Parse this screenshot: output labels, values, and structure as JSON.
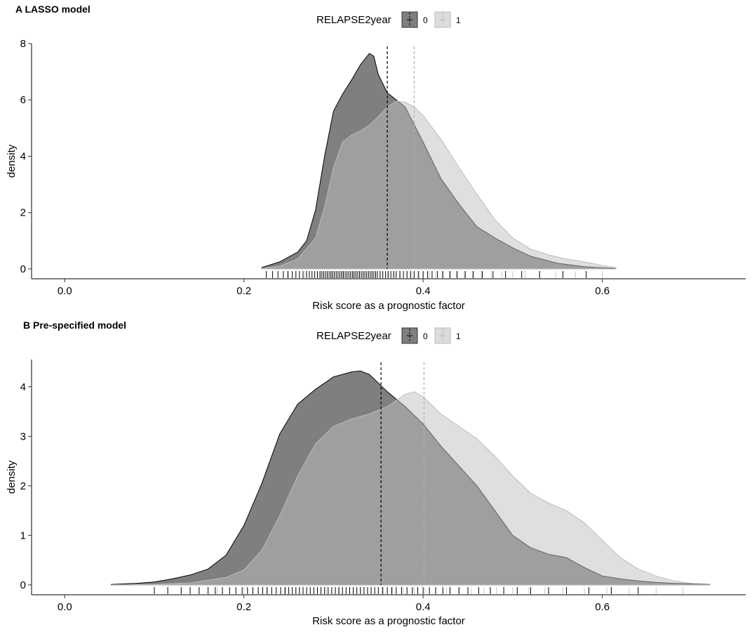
{
  "figure": {
    "panels": [
      {
        "title": "A  LASSO model"
      },
      {
        "title": "B  Pre-specified model"
      }
    ]
  },
  "chart_data": [
    {
      "type": "area",
      "title": "A  LASSO model",
      "xlabel": "Risk score as a prognostic factor",
      "ylabel": "density",
      "xlim": [
        -0.037,
        0.76
      ],
      "ylim": [
        -0.35,
        8.0
      ],
      "xticks": [
        "0.0",
        "0.2",
        "0.4",
        "0.6"
      ],
      "xtick_values": [
        0.0,
        0.2,
        0.4,
        0.6
      ],
      "yticks": [
        "0",
        "2",
        "4",
        "6",
        "8"
      ],
      "ytick_values": [
        0,
        2,
        4,
        6,
        8
      ],
      "legend": {
        "title": "RELAPSE2year",
        "position": "top",
        "entries": [
          "0",
          "1"
        ]
      },
      "grid": false,
      "colors": {
        "0": "#7f7f7f",
        "1": "#dcdcdc",
        "mean0": "#000000",
        "mean1": "#b0b0b0"
      },
      "series": [
        {
          "name": "0",
          "mean": 0.36,
          "x": [
            0.22,
            0.24,
            0.26,
            0.27,
            0.28,
            0.29,
            0.3,
            0.31,
            0.32,
            0.33,
            0.34,
            0.345,
            0.35,
            0.36,
            0.38,
            0.4,
            0.42,
            0.44,
            0.46,
            0.48,
            0.5,
            0.52,
            0.55,
            0.58,
            0.6,
            0.615
          ],
          "y": [
            0.05,
            0.25,
            0.6,
            1.0,
            2.1,
            4.0,
            5.6,
            6.2,
            6.7,
            7.25,
            7.65,
            7.55,
            6.9,
            6.25,
            5.75,
            4.5,
            3.2,
            2.3,
            1.5,
            1.1,
            0.75,
            0.45,
            0.2,
            0.08,
            0.04,
            0.02
          ]
        },
        {
          "name": "1",
          "mean": 0.39,
          "x": [
            0.22,
            0.24,
            0.26,
            0.28,
            0.29,
            0.3,
            0.31,
            0.32,
            0.33,
            0.34,
            0.35,
            0.36,
            0.37,
            0.38,
            0.39,
            0.4,
            0.42,
            0.44,
            0.46,
            0.48,
            0.5,
            0.52,
            0.54,
            0.56,
            0.58,
            0.6,
            0.615
          ],
          "y": [
            0.02,
            0.1,
            0.35,
            1.1,
            2.2,
            3.6,
            4.5,
            4.75,
            4.9,
            5.1,
            5.4,
            5.75,
            5.95,
            5.92,
            5.75,
            5.45,
            4.6,
            3.6,
            2.65,
            1.75,
            1.1,
            0.7,
            0.5,
            0.35,
            0.25,
            0.12,
            0.05
          ]
        }
      ],
      "rug": {
        "0": [
          0.225,
          0.232,
          0.238,
          0.244,
          0.249,
          0.254,
          0.258,
          0.262,
          0.266,
          0.27,
          0.273,
          0.276,
          0.279,
          0.282,
          0.285,
          0.287,
          0.289,
          0.291,
          0.293,
          0.295,
          0.297,
          0.299,
          0.301,
          0.303,
          0.305,
          0.307,
          0.309,
          0.311,
          0.313,
          0.315,
          0.317,
          0.319,
          0.321,
          0.323,
          0.325,
          0.327,
          0.329,
          0.331,
          0.333,
          0.335,
          0.337,
          0.339,
          0.341,
          0.343,
          0.345,
          0.347,
          0.349,
          0.352,
          0.355,
          0.358,
          0.361,
          0.364,
          0.367,
          0.37,
          0.374,
          0.378,
          0.382,
          0.386,
          0.39,
          0.395,
          0.4,
          0.405,
          0.41,
          0.416,
          0.422,
          0.43,
          0.438,
          0.447,
          0.456,
          0.466,
          0.478,
          0.492,
          0.51,
          0.53,
          0.556,
          0.582
        ],
        "1": [
          0.25,
          0.268,
          0.284,
          0.298,
          0.31,
          0.322,
          0.333,
          0.343,
          0.352,
          0.36,
          0.368,
          0.375,
          0.382,
          0.388,
          0.394,
          0.4,
          0.407,
          0.414,
          0.421,
          0.429,
          0.437,
          0.446,
          0.455,
          0.465,
          0.476,
          0.488,
          0.5,
          0.514,
          0.53,
          0.548,
          0.57,
          0.6
        ]
      }
    },
    {
      "type": "area",
      "title": "B  Pre-specified model",
      "xlabel": "Risk score as a prognostic factor",
      "ylabel": "density",
      "xlim": [
        -0.037,
        0.76
      ],
      "ylim": [
        -0.2,
        4.55
      ],
      "xticks": [
        "0.0",
        "0.2",
        "0.4",
        "0.6"
      ],
      "xtick_values": [
        0.0,
        0.2,
        0.4,
        0.6
      ],
      "yticks": [
        "0",
        "1",
        "2",
        "3",
        "4"
      ],
      "ytick_values": [
        0,
        1,
        2,
        3,
        4
      ],
      "legend": {
        "title": "RELAPSE2year",
        "position": "top",
        "entries": [
          "0",
          "1"
        ]
      },
      "grid": false,
      "colors": {
        "0": "#7f7f7f",
        "1": "#dcdcdc",
        "mean0": "#000000",
        "mean1": "#b0b0b0"
      },
      "series": [
        {
          "name": "0",
          "mean": 0.353,
          "x": [
            0.052,
            0.08,
            0.1,
            0.12,
            0.14,
            0.16,
            0.18,
            0.2,
            0.22,
            0.24,
            0.26,
            0.28,
            0.3,
            0.32,
            0.33,
            0.34,
            0.36,
            0.38,
            0.4,
            0.42,
            0.44,
            0.46,
            0.48,
            0.5,
            0.52,
            0.54,
            0.56,
            0.58,
            0.6,
            0.62,
            0.64,
            0.66,
            0.68,
            0.7,
            0.72
          ],
          "y": [
            0.01,
            0.03,
            0.06,
            0.12,
            0.2,
            0.32,
            0.6,
            1.2,
            2.05,
            3.05,
            3.65,
            3.95,
            4.2,
            4.3,
            4.32,
            4.25,
            3.9,
            3.6,
            3.25,
            2.8,
            2.4,
            2.0,
            1.5,
            1.0,
            0.75,
            0.62,
            0.55,
            0.35,
            0.18,
            0.12,
            0.08,
            0.05,
            0.03,
            0.02,
            0.01
          ]
        },
        {
          "name": "1",
          "mean": 0.401,
          "x": [
            0.052,
            0.1,
            0.14,
            0.18,
            0.2,
            0.22,
            0.24,
            0.26,
            0.28,
            0.3,
            0.32,
            0.34,
            0.36,
            0.38,
            0.39,
            0.4,
            0.42,
            0.44,
            0.46,
            0.48,
            0.5,
            0.52,
            0.54,
            0.56,
            0.58,
            0.6,
            0.62,
            0.64,
            0.66,
            0.68,
            0.7,
            0.72
          ],
          "y": [
            0.0,
            0.01,
            0.04,
            0.15,
            0.3,
            0.7,
            1.4,
            2.2,
            2.85,
            3.2,
            3.35,
            3.45,
            3.6,
            3.85,
            3.9,
            3.8,
            3.45,
            3.2,
            2.95,
            2.6,
            2.2,
            1.85,
            1.65,
            1.5,
            1.25,
            0.9,
            0.55,
            0.32,
            0.18,
            0.08,
            0.03,
            0.02
          ]
        }
      ],
      "rug": {
        "0": [
          0.1,
          0.115,
          0.13,
          0.14,
          0.15,
          0.16,
          0.168,
          0.176,
          0.184,
          0.191,
          0.198,
          0.204,
          0.21,
          0.216,
          0.221,
          0.226,
          0.231,
          0.236,
          0.241,
          0.246,
          0.25,
          0.254,
          0.258,
          0.262,
          0.266,
          0.27,
          0.274,
          0.278,
          0.282,
          0.286,
          0.29,
          0.294,
          0.298,
          0.302,
          0.306,
          0.31,
          0.314,
          0.318,
          0.322,
          0.326,
          0.33,
          0.334,
          0.338,
          0.342,
          0.346,
          0.35,
          0.355,
          0.36,
          0.365,
          0.37,
          0.376,
          0.382,
          0.388,
          0.394,
          0.4,
          0.407,
          0.414,
          0.422,
          0.43,
          0.44,
          0.45,
          0.462,
          0.475,
          0.49,
          0.505,
          0.52,
          0.54,
          0.56,
          0.585,
          0.61,
          0.64
        ],
        "1": [
          0.17,
          0.2,
          0.225,
          0.245,
          0.262,
          0.278,
          0.292,
          0.305,
          0.318,
          0.33,
          0.342,
          0.354,
          0.366,
          0.378,
          0.39,
          0.402,
          0.414,
          0.426,
          0.44,
          0.454,
          0.468,
          0.482,
          0.5,
          0.518,
          0.536,
          0.556,
          0.58,
          0.605,
          0.63,
          0.66,
          0.69
        ]
      }
    }
  ]
}
